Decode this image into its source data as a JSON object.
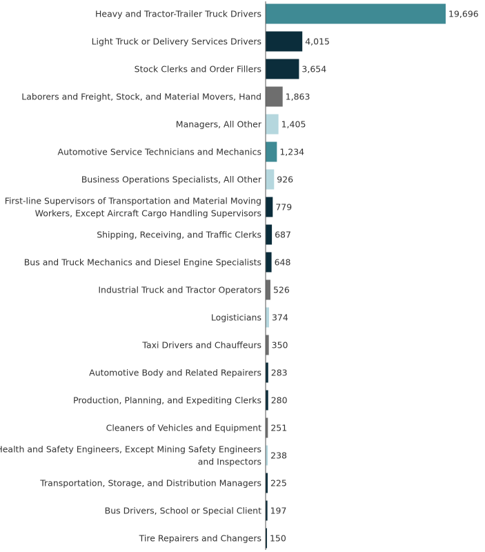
{
  "chart_data": {
    "type": "bar",
    "orientation": "horizontal",
    "title": "",
    "xlabel": "",
    "ylabel": "",
    "xlim": [
      0,
      20500
    ],
    "grid": false,
    "legend": "none",
    "categories": [
      [
        "Heavy and Tractor-Trailer Truck Drivers"
      ],
      [
        "Light Truck or Delivery Services Drivers"
      ],
      [
        "Stock Clerks and Order Fillers"
      ],
      [
        "Laborers and Freight, Stock, and Material Movers, Hand"
      ],
      [
        "Managers, All Other"
      ],
      [
        "Automotive Service Technicians and Mechanics"
      ],
      [
        "Business Operations Specialists, All Other"
      ],
      [
        "First-line Supervisors of Transportation and Material Moving",
        "Workers, Except Aircraft Cargo Handling Supervisors"
      ],
      [
        "Shipping, Receiving, and Traffic Clerks"
      ],
      [
        "Bus and Truck Mechanics and Diesel Engine Specialists"
      ],
      [
        "Industrial Truck and Tractor Operators"
      ],
      [
        "Logisticians"
      ],
      [
        "Taxi Drivers and Chauffeurs"
      ],
      [
        "Automotive Body and Related Repairers"
      ],
      [
        "Production, Planning, and Expediting Clerks"
      ],
      [
        "Cleaners of Vehicles and Equipment"
      ],
      [
        "Health and Safety Engineers, Except Mining Safety Engineers",
        "and Inspectors"
      ],
      [
        "Transportation, Storage, and Distribution Managers"
      ],
      [
        "Bus Drivers, School or Special Client"
      ],
      [
        "Tire Repairers and Changers"
      ]
    ],
    "values": [
      19696,
      4015,
      3654,
      1863,
      1405,
      1234,
      926,
      779,
      687,
      648,
      526,
      374,
      350,
      283,
      280,
      251,
      238,
      225,
      197,
      150
    ],
    "value_labels": [
      "19,696",
      "4,015",
      "3,654",
      "1,863",
      "1,405",
      "1,234",
      "926",
      "779",
      "687",
      "648",
      "526",
      "374",
      "350",
      "283",
      "280",
      "251",
      "238",
      "225",
      "197",
      "150"
    ],
    "colors": [
      "#3f8a94",
      "#0b2d3b",
      "#0b2d3b",
      "#6e6e6e",
      "#b5d7de",
      "#3f8a94",
      "#b5d7de",
      "#0b2d3b",
      "#0b2d3b",
      "#0b2d3b",
      "#6e6e6e",
      "#b5d7de",
      "#6e6e6e",
      "#0b2d3b",
      "#0b2d3b",
      "#6e6e6e",
      "#b5d7de",
      "#0b2d3b",
      "#0b2d3b",
      "#0b2d3b"
    ]
  }
}
